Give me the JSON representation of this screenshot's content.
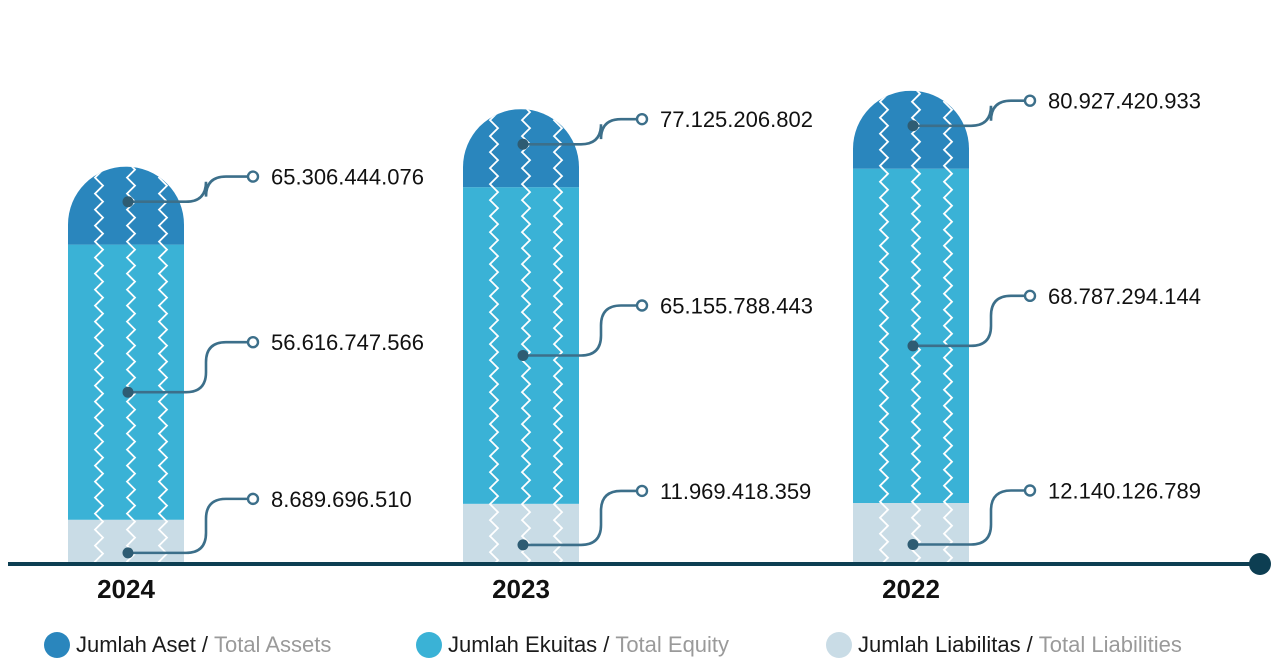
{
  "chart_data": {
    "type": "bar",
    "stacked": true,
    "categories": [
      "2024",
      "2023",
      "2022"
    ],
    "series": [
      {
        "key": "liabilities",
        "name": "Jumlah Liabilitas",
        "name_en": "Total Liabilities",
        "color": "#c9dce6",
        "labels": [
          "8.689.696.510",
          "11.969.418.359",
          "12.140.126.789"
        ],
        "values": [
          8689696510,
          11969418359,
          12140126789
        ]
      },
      {
        "key": "equity",
        "name": "Jumlah Ekuitas",
        "name_en": "Total Equity",
        "color": "#3ab2d6",
        "labels": [
          "56.616.747.566",
          "65.155.788.443",
          "68.787.294.144"
        ],
        "values": [
          56616747566,
          65155788443,
          68787294144
        ]
      },
      {
        "key": "assets",
        "name": "Jumlah Aset",
        "name_en": "Total Assets",
        "color": "#2a86bd",
        "labels": [
          "65.306.444.076",
          "77.125.206.802",
          "80.927.420.933"
        ],
        "values": [
          65306444076,
          77125206802,
          80927420933
        ]
      }
    ],
    "legend_position": "bottom",
    "grid": false,
    "colors": {
      "axis": "#0d3e52",
      "connector": "#3c6f8a",
      "connector_dot": "#2e5c73"
    }
  },
  "legend": {
    "assets": {
      "id": "Jumlah Aset",
      "sep": "/",
      "en": "Total Assets",
      "color": "#2a86bd"
    },
    "equity": {
      "id": "Jumlah Ekuitas",
      "sep": "/",
      "en": "Total Equity",
      "color": "#3ab2d6"
    },
    "liabilities": {
      "id": "Jumlah Liabilitas",
      "sep": "/",
      "en": "Total Liabilities",
      "color": "#c9dce6"
    }
  }
}
